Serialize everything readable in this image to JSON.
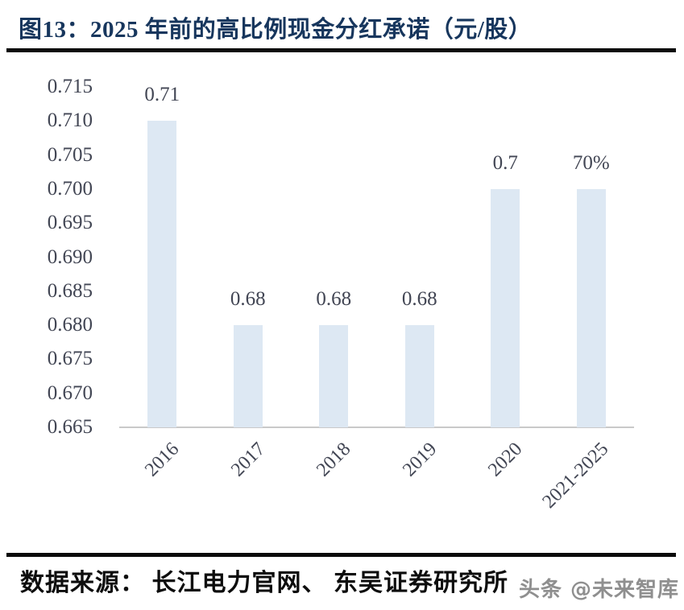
{
  "header": {
    "title": "图13：2025 年前的高比例现金分红承诺（元/股）"
  },
  "chart_data": {
    "type": "bar",
    "title": "2025 年前的高比例现金分红承诺（元/股）",
    "categories": [
      "2016",
      "2017",
      "2018",
      "2019",
      "2020",
      "2021-2025"
    ],
    "values": [
      0.71,
      0.68,
      0.68,
      0.68,
      0.7,
      0.7
    ],
    "value_labels": [
      "0.71",
      "0.68",
      "0.68",
      "0.68",
      "0.7",
      "70%"
    ],
    "xlabel": "",
    "ylabel": "",
    "ylim": [
      0.665,
      0.715
    ],
    "ytick_labels": [
      "0.715",
      "0.710",
      "0.705",
      "0.700",
      "0.695",
      "0.690",
      "0.685",
      "0.680",
      "0.675",
      "0.670",
      "0.665"
    ],
    "grid": false,
    "legend_position": "none",
    "bar_color": "#dde8f3",
    "tick_label_color": "#424654",
    "axis_line_color": "#c9c9c9"
  },
  "footer": {
    "source": "数据来源： 长江电力官网、 东吴证券研究所",
    "watermark": "头条 @未来智库"
  },
  "colors": {
    "title_navy": "#17365d",
    "divider_black": "#0b0b0b"
  }
}
